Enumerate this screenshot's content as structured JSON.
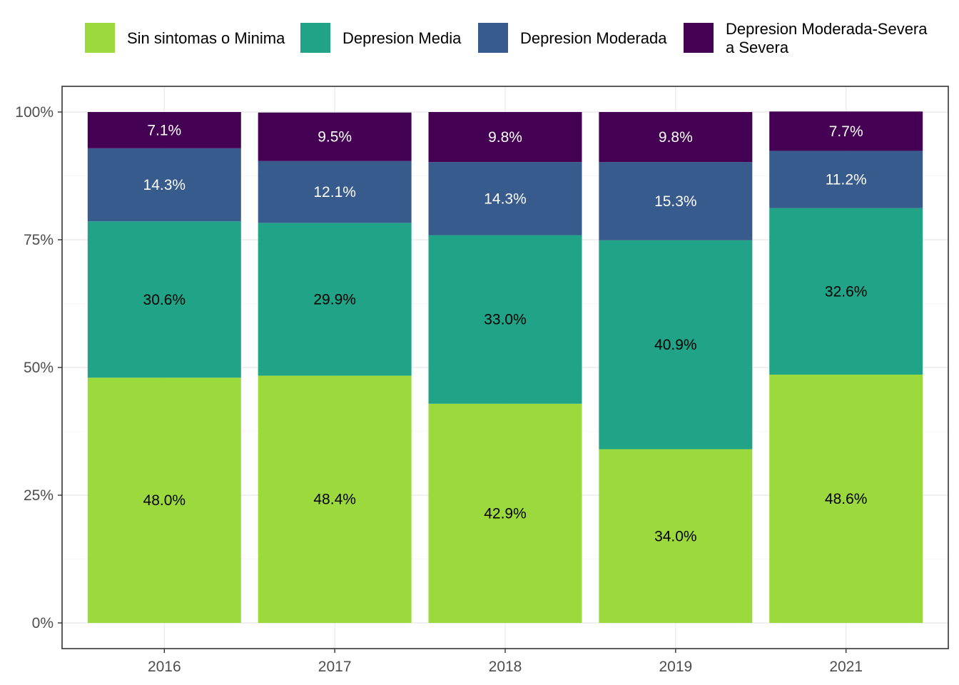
{
  "chart_data": {
    "type": "bar",
    "stacked": true,
    "categories": [
      "2016",
      "2017",
      "2018",
      "2019",
      "2021"
    ],
    "series": [
      {
        "name": "Sin sintomas o Minima",
        "color": "#9bd93c",
        "label_color": "#000000",
        "values": [
          48.0,
          48.4,
          42.9,
          34.0,
          48.6
        ],
        "labels": [
          "48.0%",
          "48.4%",
          "42.9%",
          "34.0%",
          "48.6%"
        ]
      },
      {
        "name": "Depresion Media",
        "color": "#20a386",
        "label_color": "#000000",
        "values": [
          30.6,
          29.9,
          33.0,
          40.9,
          32.6
        ],
        "labels": [
          "30.6%",
          "29.9%",
          "33.0%",
          "40.9%",
          "32.6%"
        ]
      },
      {
        "name": "Depresion Moderada",
        "color": "#375b8d",
        "label_color": "#ffffff",
        "values": [
          14.3,
          12.1,
          14.3,
          15.3,
          11.2
        ],
        "labels": [
          "14.3%",
          "12.1%",
          "14.3%",
          "15.3%",
          "11.2%"
        ]
      },
      {
        "name": "Depresion Moderada-Severa a Severa",
        "legend_lines": [
          "Depresion Moderada-Severa",
          "a Severa"
        ],
        "color": "#440154",
        "label_color": "#ffffff",
        "values": [
          7.1,
          9.5,
          9.8,
          9.8,
          7.7
        ],
        "labels": [
          "7.1%",
          "9.5%",
          "9.8%",
          "9.8%",
          "7.7%"
        ]
      }
    ],
    "y_ticks": [
      0,
      25,
      50,
      75,
      100
    ],
    "y_tick_labels": [
      "0%",
      "25%",
      "50%",
      "75%",
      "100%"
    ],
    "ylim": [
      0,
      100
    ],
    "title": "",
    "xlabel": "",
    "ylabel": "",
    "grid": true,
    "legend_position": "top"
  }
}
